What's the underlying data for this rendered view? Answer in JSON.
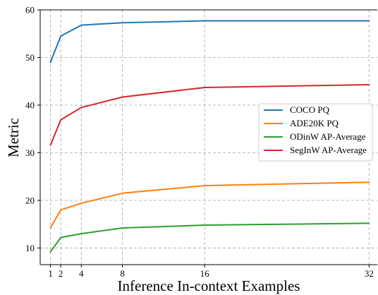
{
  "chart_data": {
    "type": "line",
    "xlabel": "Inference In-context Examples",
    "ylabel": "Metric",
    "x": [
      1,
      2,
      4,
      8,
      16,
      32
    ],
    "xticks": [
      "1",
      "2",
      "4",
      "8",
      "16",
      "32"
    ],
    "yticks": [
      "10",
      "20",
      "30",
      "40",
      "50",
      "60"
    ],
    "xlim": [
      0,
      32.8
    ],
    "ylim": [
      6.5,
      60
    ],
    "grid": true,
    "legend_position": "center-right",
    "series": [
      {
        "name": "COCO PQ",
        "color": "#1f77b4",
        "values": [
          49.0,
          54.5,
          56.8,
          57.3,
          57.7,
          57.7
        ]
      },
      {
        "name": "ADE20K PQ",
        "color": "#ff7f0e",
        "values": [
          14.2,
          18.0,
          19.4,
          21.5,
          23.1,
          23.8
        ]
      },
      {
        "name": "ODinW AP-Average",
        "color": "#2ca02c",
        "values": [
          9.2,
          12.2,
          13.0,
          14.2,
          14.8,
          15.2
        ]
      },
      {
        "name": "SegInW AP-Average",
        "color": "#d62728",
        "values": [
          31.6,
          36.9,
          39.5,
          41.7,
          43.7,
          44.3
        ]
      }
    ]
  }
}
